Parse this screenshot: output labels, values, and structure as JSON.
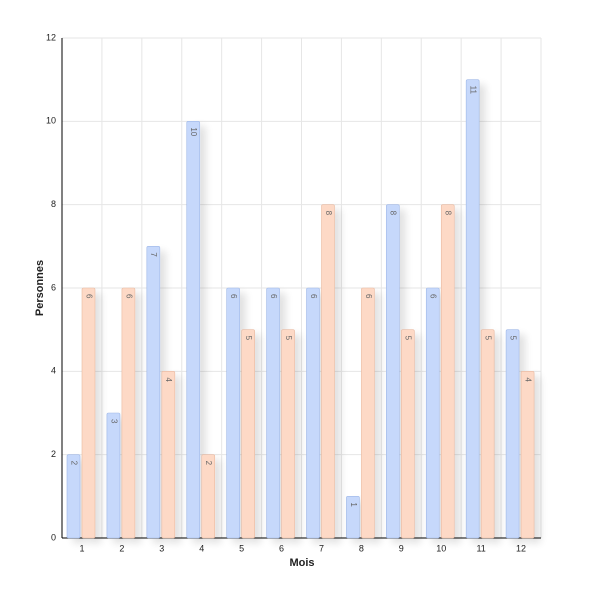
{
  "chart_data": {
    "type": "bar",
    "xlabel": "Mois",
    "ylabel": "Personnes",
    "categories": [
      "1",
      "2",
      "3",
      "4",
      "5",
      "6",
      "7",
      "8",
      "9",
      "10",
      "11",
      "12"
    ],
    "series": [
      {
        "color": "#c6d8fb",
        "values": [
          2,
          3,
          7,
          10,
          6,
          6,
          6,
          1,
          8,
          6,
          11,
          5
        ]
      },
      {
        "color": "#fdd9c6",
        "values": [
          6,
          6,
          4,
          2,
          5,
          5,
          8,
          6,
          5,
          8,
          5,
          4
        ]
      }
    ],
    "ylim": [
      0,
      12
    ],
    "yticks": [
      0,
      2,
      4,
      6,
      8,
      10,
      12
    ],
    "grid": true
  }
}
